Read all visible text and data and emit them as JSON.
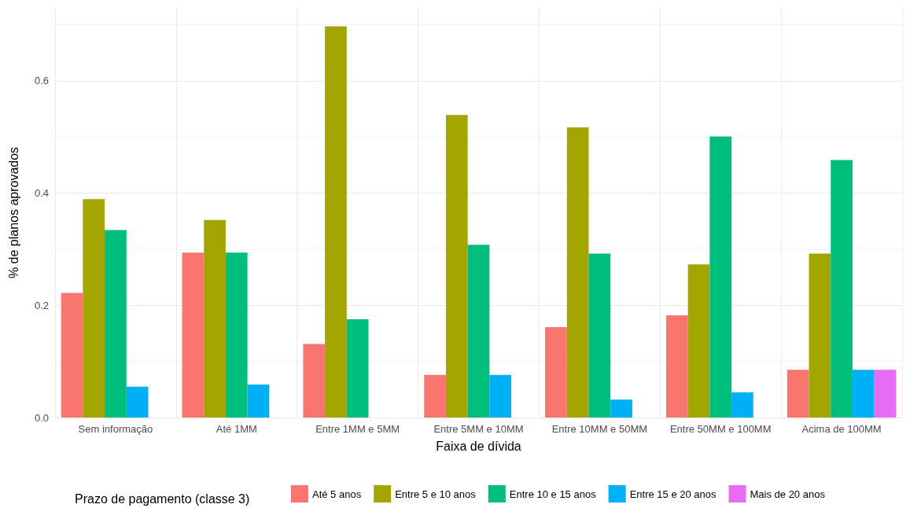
{
  "chart_data": {
    "type": "bar",
    "xlabel": "Faixa de dívida",
    "ylabel": "% de planos aprovados",
    "legend_title": "Prazo de pagamento (classe 3)",
    "legend": "bottom",
    "grid": true,
    "categories": [
      "Sem informação",
      "Até 1MM",
      "Entre 1MM e 5MM",
      "Entre 5MM e 10MM",
      "Entre 10MM e 50MM",
      "Entre 50MM e 100MM",
      "Acima de 100MM"
    ],
    "ylim": [
      0,
      0.73
    ],
    "yticks": [
      {
        "value": 0,
        "label": "0.0"
      },
      {
        "value": 0.2,
        "label": "0.2"
      },
      {
        "value": 0.4,
        "label": "0.4"
      },
      {
        "value": 0.6,
        "label": "0.6"
      }
    ],
    "series": [
      {
        "name": "Até 5 anos",
        "color": "#f8766d",
        "values": [
          0.222,
          0.294,
          0.131,
          0.076,
          0.161,
          0.182,
          0.085
        ]
      },
      {
        "name": "Entre 5 e 10 anos",
        "color": "#a3a500",
        "values": [
          0.389,
          0.352,
          0.697,
          0.539,
          0.517,
          0.273,
          0.292
        ]
      },
      {
        "name": "Entre 10 e 15 anos",
        "color": "#00bf7d",
        "values": [
          0.334,
          0.294,
          0.175,
          0.308,
          0.292,
          0.501,
          0.459
        ]
      },
      {
        "name": "Entre 15 e 20 anos",
        "color": "#00b0f6",
        "values": [
          0.055,
          0.059,
          null,
          0.076,
          0.032,
          0.045,
          0.085
        ]
      },
      {
        "name": "Mais de 20 anos",
        "color": "#e76bf3",
        "values": [
          null,
          null,
          null,
          null,
          null,
          null,
          0.085
        ]
      }
    ]
  }
}
